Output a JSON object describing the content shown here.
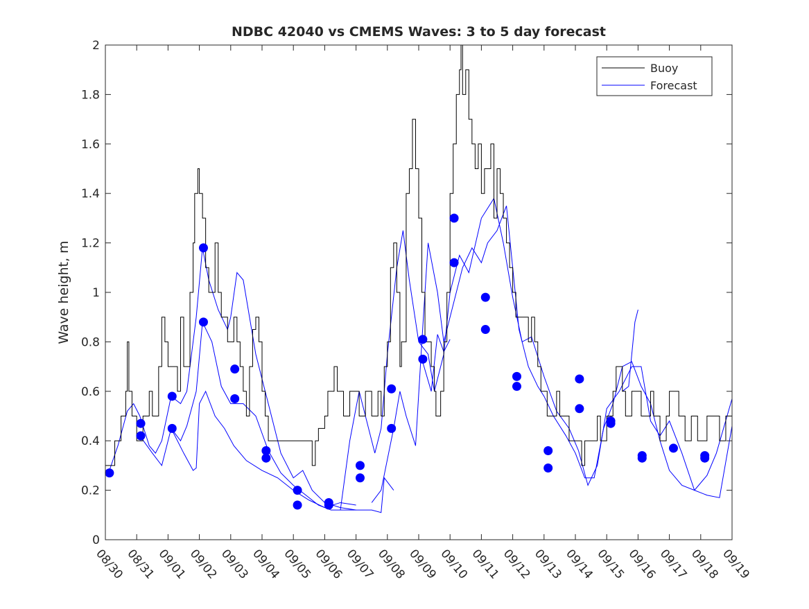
{
  "chart_data": {
    "type": "line",
    "title": "NDBC 42040 vs CMEMS Waves: 3 to 5 day forecast",
    "xlabel": "",
    "ylabel": "Wave height, m",
    "xlim": [
      0,
      20
    ],
    "ylim": [
      0,
      2
    ],
    "x_unit": "days since 08/30",
    "xticks": [
      "08/30",
      "08/31",
      "09/01",
      "09/02",
      "09/03",
      "09/04",
      "09/05",
      "09/06",
      "09/07",
      "09/08",
      "09/09",
      "09/10",
      "09/11",
      "09/12",
      "09/13",
      "09/14",
      "09/15",
      "09/16",
      "09/17",
      "09/18",
      "09/19"
    ],
    "yticks": [
      "0",
      "0.2",
      "0.4",
      "0.6",
      "0.8",
      "1",
      "1.2",
      "1.4",
      "1.6",
      "1.8",
      "2"
    ],
    "legend": {
      "placement": "top-right",
      "entries": [
        "Buoy",
        "Forecast"
      ]
    },
    "colors": {
      "buoy": "#000000",
      "forecast": "#0000ff"
    },
    "buoy": [
      [
        0,
        0.3
      ],
      [
        0.2,
        0.3
      ],
      [
        0.3,
        0.4
      ],
      [
        0.5,
        0.5
      ],
      [
        0.65,
        0.6
      ],
      [
        0.7,
        0.8
      ],
      [
        0.75,
        0.6
      ],
      [
        0.85,
        0.5
      ],
      [
        1.0,
        0.4
      ],
      [
        1.2,
        0.5
      ],
      [
        1.4,
        0.6
      ],
      [
        1.5,
        0.5
      ],
      [
        1.7,
        0.7
      ],
      [
        1.8,
        0.9
      ],
      [
        1.9,
        0.8
      ],
      [
        2.0,
        0.7
      ],
      [
        2.2,
        0.7
      ],
      [
        2.3,
        0.6
      ],
      [
        2.4,
        0.9
      ],
      [
        2.5,
        0.7
      ],
      [
        2.6,
        0.7
      ],
      [
        2.7,
        1.0
      ],
      [
        2.8,
        1.2
      ],
      [
        2.85,
        1.4
      ],
      [
        2.95,
        1.5
      ],
      [
        3.0,
        1.4
      ],
      [
        3.1,
        1.3
      ],
      [
        3.2,
        1.1
      ],
      [
        3.3,
        1.0
      ],
      [
        3.5,
        1.2
      ],
      [
        3.6,
        1.0
      ],
      [
        3.7,
        0.9
      ],
      [
        3.8,
        0.9
      ],
      [
        3.9,
        0.8
      ],
      [
        4.1,
        0.9
      ],
      [
        4.2,
        0.8
      ],
      [
        4.3,
        0.7
      ],
      [
        4.4,
        0.6
      ],
      [
        4.5,
        0.5
      ],
      [
        4.6,
        0.7
      ],
      [
        4.7,
        0.85
      ],
      [
        4.8,
        0.9
      ],
      [
        4.9,
        0.8
      ],
      [
        5.0,
        0.6
      ],
      [
        5.1,
        0.5
      ],
      [
        5.2,
        0.4
      ],
      [
        5.5,
        0.4
      ],
      [
        6.0,
        0.4
      ],
      [
        6.5,
        0.4
      ],
      [
        6.6,
        0.3
      ],
      [
        6.7,
        0.4
      ],
      [
        6.8,
        0.45
      ],
      [
        7.0,
        0.5
      ],
      [
        7.1,
        0.6
      ],
      [
        7.3,
        0.7
      ],
      [
        7.4,
        0.6
      ],
      [
        7.6,
        0.5
      ],
      [
        7.8,
        0.6
      ],
      [
        8.0,
        0.6
      ],
      [
        8.1,
        0.5
      ],
      [
        8.3,
        0.6
      ],
      [
        8.5,
        0.5
      ],
      [
        8.7,
        0.6
      ],
      [
        8.8,
        0.5
      ],
      [
        8.9,
        0.7
      ],
      [
        9.0,
        0.8
      ],
      [
        9.1,
        1.1
      ],
      [
        9.2,
        1.2
      ],
      [
        9.3,
        1.0
      ],
      [
        9.4,
        0.7
      ],
      [
        9.45,
        0.8
      ],
      [
        9.6,
        1.4
      ],
      [
        9.7,
        1.5
      ],
      [
        9.8,
        1.7
      ],
      [
        9.9,
        1.5
      ],
      [
        10.0,
        1.3
      ],
      [
        10.1,
        1.0
      ],
      [
        10.2,
        0.8
      ],
      [
        10.4,
        0.7
      ],
      [
        10.5,
        0.6
      ],
      [
        10.55,
        0.5
      ],
      [
        10.7,
        0.6
      ],
      [
        10.8,
        0.8
      ],
      [
        10.9,
        1.0
      ],
      [
        11.0,
        1.4
      ],
      [
        11.1,
        1.6
      ],
      [
        11.2,
        1.8
      ],
      [
        11.3,
        1.9
      ],
      [
        11.35,
        2.0
      ],
      [
        11.4,
        1.8
      ],
      [
        11.5,
        1.9
      ],
      [
        11.6,
        1.7
      ],
      [
        11.7,
        1.6
      ],
      [
        11.8,
        1.5
      ],
      [
        11.9,
        1.6
      ],
      [
        12.0,
        1.4
      ],
      [
        12.1,
        1.5
      ],
      [
        12.3,
        1.6
      ],
      [
        12.4,
        1.3
      ],
      [
        12.5,
        1.5
      ],
      [
        12.6,
        1.4
      ],
      [
        12.7,
        1.3
      ],
      [
        12.8,
        1.2
      ],
      [
        12.9,
        1.1
      ],
      [
        13.0,
        1.0
      ],
      [
        13.1,
        0.9
      ],
      [
        13.3,
        0.9
      ],
      [
        13.5,
        0.8
      ],
      [
        13.6,
        0.9
      ],
      [
        13.7,
        0.8
      ],
      [
        13.8,
        0.7
      ],
      [
        13.9,
        0.6
      ],
      [
        14.0,
        0.6
      ],
      [
        14.1,
        0.5
      ],
      [
        14.3,
        0.5
      ],
      [
        14.4,
        0.6
      ],
      [
        14.5,
        0.5
      ],
      [
        14.7,
        0.5
      ],
      [
        14.8,
        0.4
      ],
      [
        15.2,
        0.3
      ],
      [
        15.3,
        0.4
      ],
      [
        15.5,
        0.4
      ],
      [
        15.7,
        0.5
      ],
      [
        15.8,
        0.4
      ],
      [
        16.0,
        0.5
      ],
      [
        16.2,
        0.6
      ],
      [
        16.3,
        0.7
      ],
      [
        16.5,
        0.6
      ],
      [
        16.6,
        0.5
      ],
      [
        16.8,
        0.6
      ],
      [
        17.0,
        0.6
      ],
      [
        17.1,
        0.5
      ],
      [
        17.4,
        0.6
      ],
      [
        17.5,
        0.5
      ],
      [
        17.7,
        0.4
      ],
      [
        17.9,
        0.5
      ],
      [
        18.0,
        0.6
      ],
      [
        18.2,
        0.6
      ],
      [
        18.3,
        0.5
      ],
      [
        18.5,
        0.4
      ],
      [
        18.7,
        0.5
      ],
      [
        18.9,
        0.4
      ],
      [
        19.0,
        0.4
      ],
      [
        19.2,
        0.5
      ],
      [
        19.4,
        0.5
      ],
      [
        19.6,
        0.4
      ],
      [
        19.8,
        0.5
      ],
      [
        20,
        0.4
      ]
    ],
    "forecast_series": [
      [
        [
          0.1,
          0.27
        ],
        [
          0.4,
          0.38
        ],
        [
          0.7,
          0.52
        ],
        [
          0.9,
          0.55
        ],
        [
          1.1,
          0.5
        ],
        [
          1.4,
          0.38
        ],
        [
          1.6,
          0.35
        ],
        [
          1.8,
          0.4
        ],
        [
          2.1,
          0.58
        ],
        [
          2.4,
          0.55
        ],
        [
          2.6,
          0.6
        ],
        [
          2.9,
          0.9
        ],
        [
          3.1,
          1.18
        ],
        [
          3.3,
          1.05
        ],
        [
          3.6,
          0.93
        ],
        [
          3.9,
          0.85
        ],
        [
          4.0,
          0.9
        ],
        [
          4.2,
          1.08
        ],
        [
          4.4,
          1.05
        ],
        [
          4.8,
          0.75
        ],
        [
          5.2,
          0.55
        ],
        [
          5.6,
          0.35
        ],
        [
          6.0,
          0.25
        ],
        [
          6.3,
          0.28
        ],
        [
          6.6,
          0.2
        ],
        [
          7.0,
          0.15
        ],
        [
          7.5,
          0.13
        ],
        [
          8.0,
          0.12
        ],
        [
          8.5,
          0.12
        ],
        [
          8.8,
          0.11
        ],
        [
          8.9,
          0.25
        ],
        [
          9.2,
          0.2
        ]
      ],
      [
        [
          1.1,
          0.42
        ],
        [
          1.5,
          0.35
        ],
        [
          1.8,
          0.3
        ],
        [
          2.1,
          0.45
        ],
        [
          2.4,
          0.4
        ],
        [
          2.6,
          0.46
        ],
        [
          2.9,
          0.6
        ],
        [
          3.1,
          0.88
        ],
        [
          3.4,
          0.8
        ],
        [
          3.7,
          0.62
        ],
        [
          4.0,
          0.55
        ],
        [
          4.4,
          0.55
        ],
        [
          4.8,
          0.5
        ],
        [
          5.2,
          0.36
        ],
        [
          5.6,
          0.27
        ],
        [
          6.0,
          0.22
        ],
        [
          6.4,
          0.18
        ],
        [
          6.8,
          0.14
        ],
        [
          7.2,
          0.12
        ],
        [
          7.6,
          0.12
        ],
        [
          8.0,
          0.12
        ]
      ],
      [
        [
          2.1,
          0.45
        ],
        [
          2.5,
          0.35
        ],
        [
          2.8,
          0.28
        ],
        [
          2.9,
          0.29
        ],
        [
          3.0,
          0.55
        ],
        [
          3.2,
          0.6
        ],
        [
          3.5,
          0.5
        ],
        [
          3.8,
          0.45
        ],
        [
          4.1,
          0.38
        ],
        [
          4.5,
          0.32
        ],
        [
          5.0,
          0.28
        ],
        [
          5.5,
          0.25
        ],
        [
          6.0,
          0.2
        ],
        [
          6.5,
          0.16
        ],
        [
          7.0,
          0.13
        ],
        [
          7.5,
          0.15
        ],
        [
          8.0,
          0.14
        ]
      ],
      [
        [
          8.5,
          0.15
        ],
        [
          8.8,
          0.2
        ],
        [
          9.2,
          0.45
        ],
        [
          9.4,
          0.6
        ],
        [
          9.6,
          0.5
        ],
        [
          9.9,
          0.38
        ],
        [
          10.1,
          0.8
        ],
        [
          10.3,
          1.2
        ],
        [
          10.6,
          1.0
        ],
        [
          10.8,
          0.8
        ],
        [
          11.1,
          0.95
        ],
        [
          11.4,
          1.1
        ],
        [
          11.7,
          1.18
        ],
        [
          12.0,
          1.12
        ],
        [
          12.2,
          1.2
        ],
        [
          12.5,
          1.25
        ],
        [
          12.8,
          1.35
        ],
        [
          13.0,
          1.1
        ],
        [
          13.2,
          0.85
        ],
        [
          13.5,
          0.7
        ],
        [
          13.8,
          0.62
        ],
        [
          14.0,
          0.58
        ],
        [
          14.3,
          0.5
        ],
        [
          14.7,
          0.42
        ],
        [
          15.0,
          0.35
        ],
        [
          15.3,
          0.25
        ],
        [
          15.6,
          0.25
        ],
        [
          15.9,
          0.45
        ],
        [
          16.2,
          0.55
        ],
        [
          16.5,
          0.7
        ],
        [
          16.8,
          0.72
        ],
        [
          17.1,
          0.62
        ],
        [
          17.4,
          0.55
        ],
        [
          17.7,
          0.4
        ],
        [
          18.0,
          0.28
        ],
        [
          18.4,
          0.22
        ],
        [
          18.8,
          0.2
        ],
        [
          19.2,
          0.26
        ],
        [
          19.5,
          0.35
        ],
        [
          20,
          0.57
        ]
      ],
      [
        [
          7.5,
          0.12
        ],
        [
          7.8,
          0.4
        ],
        [
          8.1,
          0.6
        ],
        [
          8.4,
          0.45
        ],
        [
          8.6,
          0.35
        ],
        [
          8.8,
          0.45
        ],
        [
          9.0,
          0.75
        ],
        [
          9.3,
          1.1
        ],
        [
          9.5,
          1.25
        ],
        [
          9.7,
          1.05
        ],
        [
          10.0,
          0.8
        ],
        [
          10.3,
          0.75
        ],
        [
          10.5,
          0.6
        ],
        [
          10.8,
          0.75
        ],
        [
          11.0,
          1.0
        ],
        [
          11.3,
          1.15
        ],
        [
          11.6,
          1.08
        ],
        [
          12.0,
          1.3
        ],
        [
          12.4,
          1.38
        ],
        [
          12.7,
          1.2
        ],
        [
          13.0,
          0.98
        ],
        [
          13.3,
          0.8
        ],
        [
          13.6,
          0.82
        ],
        [
          14.0,
          0.66
        ],
        [
          14.4,
          0.52
        ],
        [
          14.8,
          0.45
        ],
        [
          15.1,
          0.36
        ],
        [
          15.4,
          0.22
        ],
        [
          15.7,
          0.3
        ],
        [
          16.0,
          0.53
        ],
        [
          16.4,
          0.6
        ],
        [
          16.8,
          0.7
        ],
        [
          17.1,
          0.7
        ],
        [
          17.4,
          0.48
        ],
        [
          17.7,
          0.42
        ],
        [
          18.0,
          0.48
        ],
        [
          18.4,
          0.35
        ],
        [
          18.8,
          0.2
        ],
        [
          19.2,
          0.18
        ],
        [
          19.6,
          0.17
        ],
        [
          20,
          0.46
        ]
      ],
      [
        [
          10.1,
          0.73
        ],
        [
          10.4,
          0.6
        ],
        [
          10.6,
          0.83
        ],
        [
          10.8,
          0.76
        ],
        [
          11.0,
          0.81
        ]
      ],
      [
        [
          16.5,
          0.6
        ],
        [
          16.7,
          0.62
        ],
        [
          16.9,
          0.88
        ],
        [
          17.0,
          0.93
        ]
      ]
    ],
    "forecast_points": [
      [
        0.13,
        0.27
      ],
      [
        1.13,
        0.47
      ],
      [
        1.13,
        0.42
      ],
      [
        2.13,
        0.58
      ],
      [
        2.13,
        0.45
      ],
      [
        3.13,
        1.18
      ],
      [
        3.13,
        0.88
      ],
      [
        4.13,
        0.69
      ],
      [
        4.13,
        0.57
      ],
      [
        5.13,
        0.36
      ],
      [
        5.13,
        0.33
      ],
      [
        6.13,
        0.2
      ],
      [
        6.13,
        0.14
      ],
      [
        7.13,
        0.15
      ],
      [
        7.13,
        0.14
      ],
      [
        8.13,
        0.3
      ],
      [
        8.13,
        0.25
      ],
      [
        9.13,
        0.61
      ],
      [
        9.13,
        0.45
      ],
      [
        10.13,
        0.81
      ],
      [
        10.13,
        0.73
      ],
      [
        11.13,
        1.3
      ],
      [
        11.13,
        1.12
      ],
      [
        12.13,
        0.98
      ],
      [
        12.13,
        0.85
      ],
      [
        13.13,
        0.66
      ],
      [
        13.13,
        0.62
      ],
      [
        14.13,
        0.36
      ],
      [
        14.13,
        0.29
      ],
      [
        15.13,
        0.65
      ],
      [
        15.13,
        0.53
      ],
      [
        16.13,
        0.48
      ],
      [
        16.13,
        0.47
      ],
      [
        17.13,
        0.34
      ],
      [
        17.13,
        0.33
      ],
      [
        18.13,
        0.37
      ],
      [
        19.13,
        0.34
      ],
      [
        19.13,
        0.33
      ]
    ]
  }
}
